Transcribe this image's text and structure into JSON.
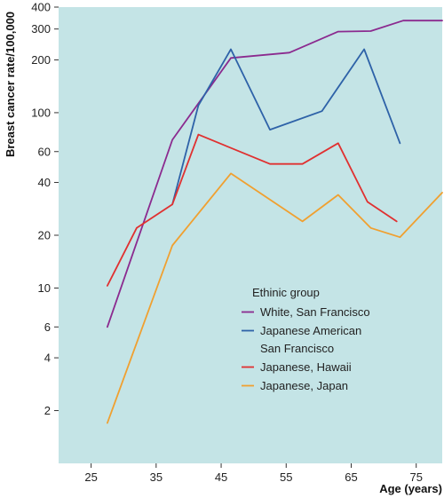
{
  "chart_data": {
    "type": "line",
    "title": "",
    "xlabel": "Age (years)",
    "ylabel": "Breast cancer rate/100,000",
    "x_ticks": [
      "25",
      "35",
      "45",
      "55",
      "65",
      "75"
    ],
    "y_ticks": [
      "2",
      "4",
      "6",
      "10",
      "20",
      "40",
      "60",
      "100",
      "200",
      "300",
      "400"
    ],
    "xlim": [
      20,
      79
    ],
    "ylim": [
      1,
      400
    ],
    "yscale": "log",
    "grid": false,
    "background": "#c4e4e6",
    "legend": {
      "title": "Ethinic group",
      "placement": "lower-right",
      "entries": [
        {
          "lines": [
            "White, San Francisco"
          ],
          "color": "#8b2a8f"
        },
        {
          "lines": [
            "Japanese American",
            "San Francisco"
          ],
          "color": "#2e62a8"
        },
        {
          "lines": [
            "Japanese, Hawaii"
          ],
          "color": "#e03030"
        },
        {
          "lines": [
            "Japanese, Japan"
          ],
          "color": "#f0a030"
        }
      ]
    },
    "series": [
      {
        "name": "White, San Francisco",
        "color": "#8b2a8f",
        "points": [
          [
            27.5,
            6
          ],
          [
            37.5,
            70
          ],
          [
            46.5,
            205
          ],
          [
            55.5,
            220
          ],
          [
            63,
            290
          ],
          [
            68,
            292
          ],
          [
            73,
            335
          ],
          [
            79,
            335
          ]
        ]
      },
      {
        "name": "Japanese American San Francisco",
        "color": "#2e62a8",
        "points": [
          [
            37.5,
            30
          ],
          [
            41.5,
            110
          ],
          [
            46.5,
            230
          ],
          [
            52.5,
            80
          ],
          [
            60.5,
            102
          ],
          [
            67,
            230
          ],
          [
            72.5,
            67
          ]
        ]
      },
      {
        "name": "Japanese, Hawaii",
        "color": "#e03030",
        "points": [
          [
            27.5,
            10.3
          ],
          [
            32,
            22
          ],
          [
            37.5,
            30
          ],
          [
            41.5,
            75
          ],
          [
            52.5,
            51
          ],
          [
            57.5,
            51
          ],
          [
            63,
            67
          ],
          [
            67.5,
            31
          ],
          [
            72,
            24
          ]
        ]
      },
      {
        "name": "Japanese, Japan",
        "color": "#f0a030",
        "points": [
          [
            27.5,
            1.7
          ],
          [
            37.5,
            17.5
          ],
          [
            46.5,
            45
          ],
          [
            57.5,
            24
          ],
          [
            63,
            34
          ],
          [
            68,
            22
          ],
          [
            72.5,
            19.5
          ],
          [
            79,
            35
          ]
        ]
      }
    ]
  }
}
